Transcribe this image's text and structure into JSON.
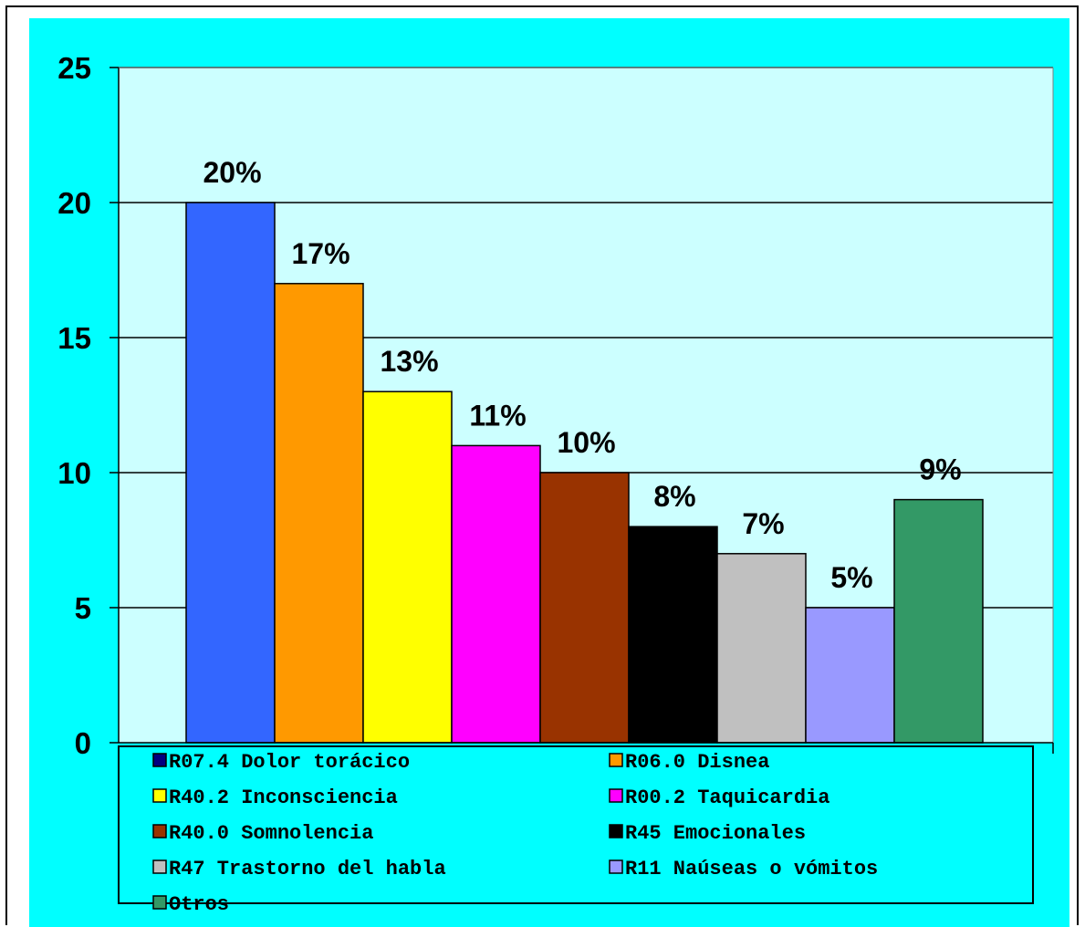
{
  "colors": {
    "outer_background": "#00ffff",
    "plot_background": "#ccffff",
    "legend_background": "#00ffff"
  },
  "chart_data": {
    "type": "bar",
    "categories": [
      "R07.4 Dolor torácico",
      "R06.0 Disnea",
      "R40.2 Inconsciencia",
      "R00.2 Taquicardia",
      "R40.0 Somnolencia",
      "R45 Emocionales",
      "R47 Trastorno del habla",
      "R11 Naúseas o vómitos",
      "Otros"
    ],
    "values": [
      20,
      17,
      13,
      11,
      10,
      8,
      7,
      5,
      9
    ],
    "data_labels": [
      "20%",
      "17%",
      "13%",
      "11%",
      "10%",
      "8%",
      "7%",
      "5%",
      "9%"
    ],
    "colors": [
      "#3366ff",
      "#ff9900",
      "#ffff00",
      "#ff00ff",
      "#993300",
      "#000000",
      "#c0c0c0",
      "#9999ff",
      "#339966"
    ],
    "legend_colors": [
      "#000080",
      "#ff9900",
      "#ffff00",
      "#ff00ff",
      "#993300",
      "#000000",
      "#c0c0c0",
      "#9999ff",
      "#339966"
    ],
    "ylim": [
      0,
      25
    ],
    "y_ticks": [
      "0",
      "5",
      "10",
      "15",
      "20",
      "25"
    ],
    "grid": true,
    "legend_position": "bottom"
  }
}
